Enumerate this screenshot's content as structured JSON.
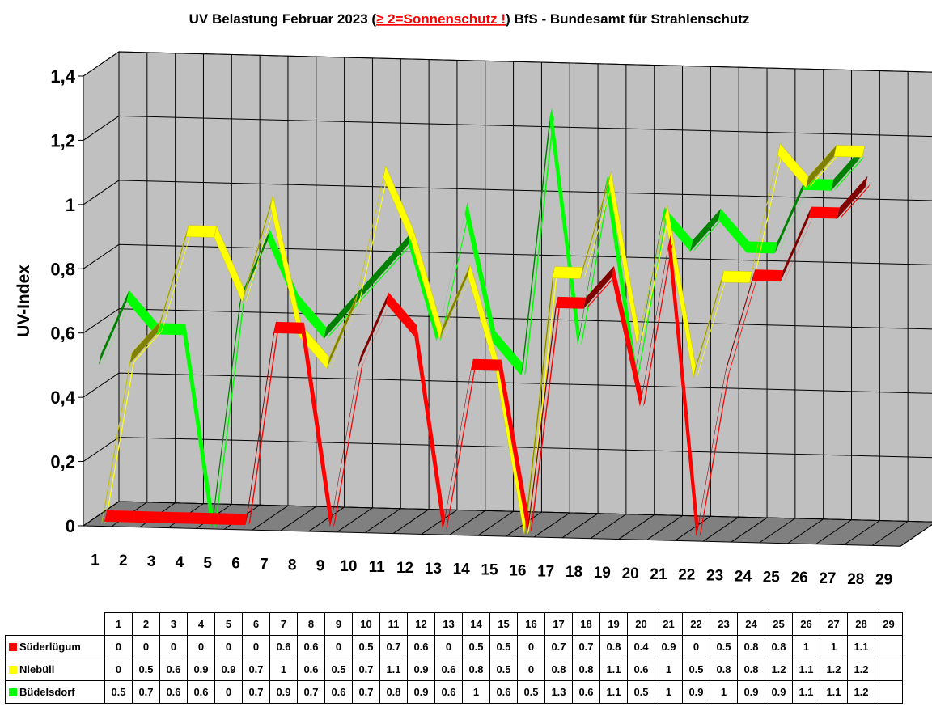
{
  "title": {
    "prefix": "UV Belastung Februar 2023 (",
    "highlight": "≥ 2=Sonnenschutz !",
    "suffix": ") BfS - Bundesamt für Strahlenschutz"
  },
  "chart_data": {
    "type": "line",
    "title": "UV Belastung Februar 2023 (≥ 2=Sonnenschutz !) BfS - Bundesamt für Strahlenschutz",
    "ylabel": "UV-Index",
    "xlabel": "",
    "ylim": [
      0,
      1.4
    ],
    "yticks": [
      "0",
      "0,2",
      "0,4",
      "0,6",
      "0,8",
      "1",
      "1,2",
      "1,4"
    ],
    "categories": [
      "1",
      "2",
      "3",
      "4",
      "5",
      "6",
      "7",
      "8",
      "9",
      "10",
      "11",
      "12",
      "13",
      "14",
      "15",
      "16",
      "17",
      "18",
      "19",
      "20",
      "21",
      "22",
      "23",
      "24",
      "25",
      "26",
      "27",
      "28",
      "29"
    ],
    "grid": true,
    "style": "3d-ribbon",
    "series": [
      {
        "name": "Süderlügum",
        "color": "#ff0000",
        "values": [
          0,
          0,
          0,
          0,
          0,
          0,
          0.6,
          0.6,
          0,
          0.5,
          0.7,
          0.6,
          0,
          0.5,
          0.5,
          0,
          0.7,
          0.7,
          0.8,
          0.4,
          0.9,
          0,
          0.5,
          0.8,
          0.8,
          1,
          1,
          1.1,
          null
        ]
      },
      {
        "name": "Niebüll",
        "color": "#ffff00",
        "values": [
          0,
          0.5,
          0.6,
          0.9,
          0.9,
          0.7,
          1,
          0.6,
          0.5,
          0.7,
          1.1,
          0.9,
          0.6,
          0.8,
          0.5,
          0,
          0.8,
          0.8,
          1.1,
          0.6,
          1,
          0.5,
          0.8,
          0.8,
          1.2,
          1.1,
          1.2,
          1.2,
          null
        ]
      },
      {
        "name": "Büdelsdorf",
        "color": "#00ff00",
        "values": [
          0.5,
          0.7,
          0.6,
          0.6,
          0,
          0.7,
          0.9,
          0.7,
          0.6,
          0.7,
          0.8,
          0.9,
          0.6,
          1,
          0.6,
          0.5,
          1.3,
          0.6,
          1.1,
          0.5,
          1,
          0.9,
          1,
          0.9,
          0.9,
          1.1,
          1.1,
          1.2,
          null
        ]
      }
    ]
  },
  "table": {
    "headers": [
      "1",
      "2",
      "3",
      "4",
      "5",
      "6",
      "7",
      "8",
      "9",
      "10",
      "11",
      "12",
      "13",
      "14",
      "15",
      "16",
      "17",
      "18",
      "19",
      "20",
      "21",
      "22",
      "23",
      "24",
      "25",
      "26",
      "27",
      "28",
      "29"
    ],
    "rows": [
      {
        "label": "Süderlügum",
        "color": "#ff0000",
        "cells": [
          "0",
          "0",
          "0",
          "0",
          "0",
          "0",
          "0.6",
          "0.6",
          "0",
          "0.5",
          "0.7",
          "0.6",
          "0",
          "0.5",
          "0.5",
          "0",
          "0.7",
          "0.7",
          "0.8",
          "0.4",
          "0.9",
          "0",
          "0.5",
          "0.8",
          "0.8",
          "1",
          "1",
          "1.1",
          ""
        ]
      },
      {
        "label": "Niebüll",
        "color": "#ffff00",
        "cells": [
          "0",
          "0.5",
          "0.6",
          "0.9",
          "0.9",
          "0.7",
          "1",
          "0.6",
          "0.5",
          "0.7",
          "1.1",
          "0.9",
          "0.6",
          "0.8",
          "0.5",
          "0",
          "0.8",
          "0.8",
          "1.1",
          "0.6",
          "1",
          "0.5",
          "0.8",
          "0.8",
          "1.2",
          "1.1",
          "1.2",
          "1.2",
          ""
        ]
      },
      {
        "label": "Büdelsdorf",
        "color": "#00ff00",
        "cells": [
          "0.5",
          "0.7",
          "0.6",
          "0.6",
          "0",
          "0.7",
          "0.9",
          "0.7",
          "0.6",
          "0.7",
          "0.8",
          "0.9",
          "0.6",
          "1",
          "0.6",
          "0.5",
          "1.3",
          "0.6",
          "1.1",
          "0.5",
          "1",
          "0.9",
          "1",
          "0.9",
          "0.9",
          "1.1",
          "1.1",
          "1.2",
          ""
        ]
      }
    ]
  }
}
